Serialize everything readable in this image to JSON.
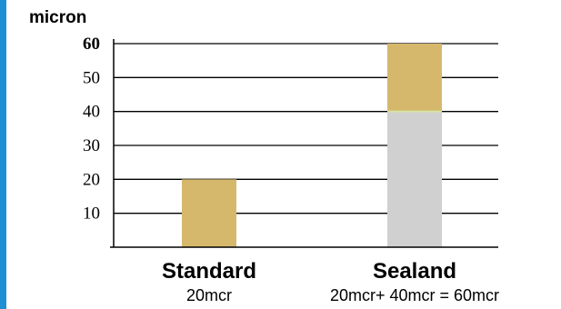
{
  "colors": {
    "accent_bar": "#1f8fd3",
    "base_coat": "#d0d0d0",
    "top_coat": "#d6b86c",
    "divider": "#d7e1a3"
  },
  "chart_data": {
    "type": "bar",
    "stacked": true,
    "title": "",
    "ylabel": "micron",
    "xlabel": "",
    "ylim": [
      0,
      60
    ],
    "yticks": [
      10,
      20,
      30,
      40,
      50,
      60
    ],
    "grid": true,
    "categories": [
      "Standard",
      "Sealand"
    ],
    "category_notes": [
      "20mcr",
      "20mcr+ 40mcr = 60mcr"
    ],
    "series": [
      {
        "values": [
          0,
          40
        ],
        "color": "#d0d0d0"
      },
      {
        "values": [
          20,
          20
        ],
        "color": "#d6b86c"
      }
    ]
  }
}
